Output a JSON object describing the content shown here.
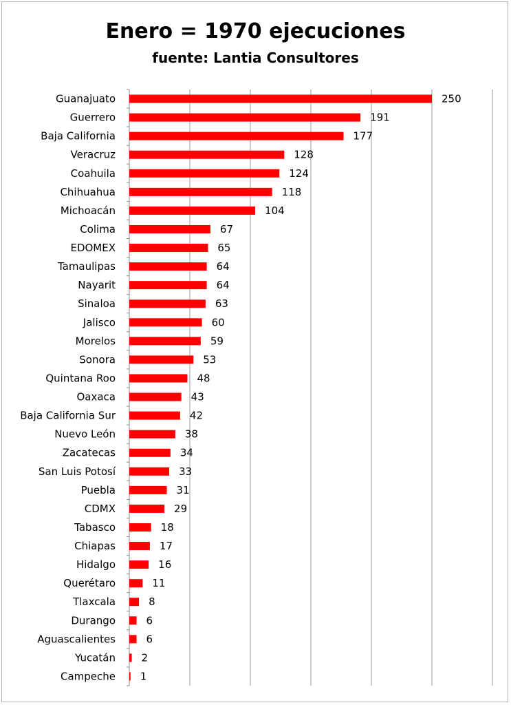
{
  "chart_data": {
    "type": "bar",
    "orientation": "horizontal",
    "title": "Enero = 1970 ejecuciones",
    "subtitle": "fuente: Lantia Consultores",
    "xlim": [
      0,
      300
    ],
    "grid": true,
    "bar_color": "#ff0000",
    "categories": [
      "Guanajuato",
      "Guerrero",
      "Baja California",
      "Veracruz",
      "Coahuila",
      "Chihuahua",
      "Michoacán",
      "Colima",
      "EDOMEX",
      "Tamaulipas",
      "Nayarit",
      "Sinaloa",
      "Jalisco",
      "Morelos",
      "Sonora",
      "Quintana Roo",
      "Oaxaca",
      "Baja California Sur",
      "Nuevo León",
      "Zacatecas",
      "San Luis Potosí",
      "Puebla",
      "CDMX",
      "Tabasco",
      "Chiapas",
      "Hidalgo",
      "Querétaro",
      "Tlaxcala",
      "Durango",
      "Aguascalientes",
      "Yucatán",
      "Campeche"
    ],
    "values": [
      250,
      191,
      177,
      128,
      124,
      118,
      104,
      67,
      65,
      64,
      64,
      63,
      60,
      59,
      53,
      48,
      43,
      42,
      38,
      34,
      33,
      31,
      29,
      18,
      17,
      16,
      11,
      8,
      6,
      6,
      2,
      1
    ]
  }
}
